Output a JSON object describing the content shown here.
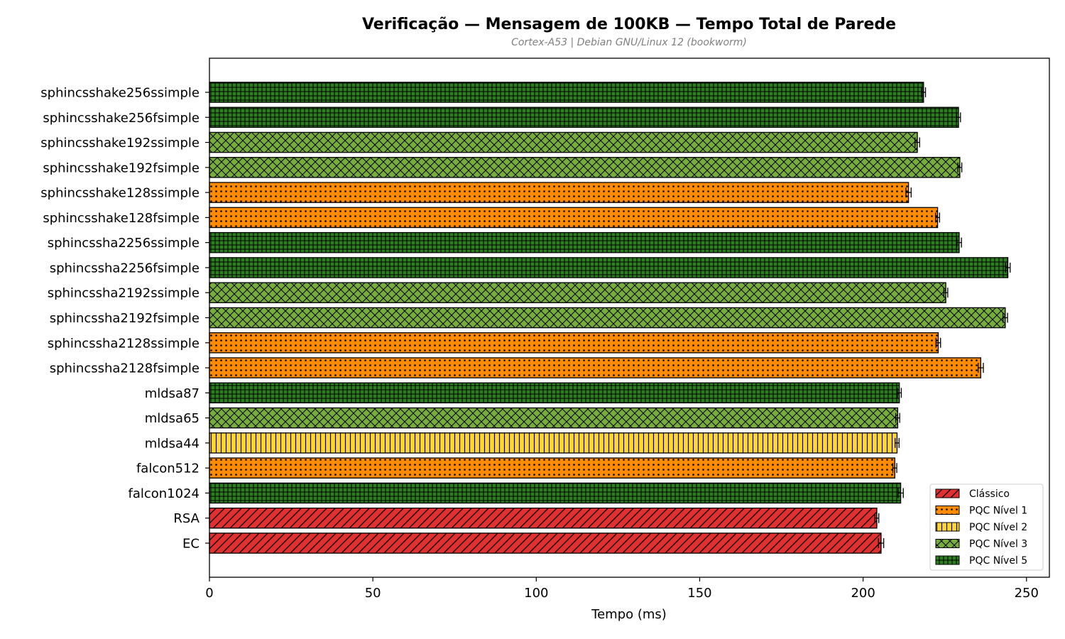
{
  "chart_data": {
    "type": "bar",
    "orientation": "horizontal",
    "title": "Verificação — Mensagem de 100KB — Tempo Total de Parede",
    "subtitle": "Cortex-A53 | Debian GNU/Linux 12 (bookworm)",
    "xlabel": "Tempo (ms)",
    "ylabel": "",
    "xlim": [
      0,
      257
    ],
    "xticks": [
      0,
      50,
      100,
      150,
      200,
      250
    ],
    "grid": false,
    "legend_position": "bottom-right",
    "categories": [
      {
        "name": "Clássico",
        "color": "#e03030",
        "pattern": "diagonal-hatch"
      },
      {
        "name": "PQC Nível 1",
        "color": "#ff8c00",
        "pattern": "dots"
      },
      {
        "name": "PQC Nível 2",
        "color": "#ffd633",
        "pattern": "vertical-lines"
      },
      {
        "name": "PQC Nível 3",
        "color": "#77ad3a",
        "pattern": "crosshatch"
      },
      {
        "name": "PQC Nível 5",
        "color": "#2e7d22",
        "pattern": "grid"
      }
    ],
    "bars": [
      {
        "label": "sphincsshake256ssimple",
        "value": 218.5,
        "error": 0.6,
        "category": 4
      },
      {
        "label": "sphincsshake256fsimple",
        "value": 229.2,
        "error": 0.6,
        "category": 4
      },
      {
        "label": "sphincsshake192ssimple",
        "value": 216.6,
        "error": 0.7,
        "category": 3
      },
      {
        "label": "sphincsshake192fsimple",
        "value": 229.6,
        "error": 0.6,
        "category": 3
      },
      {
        "label": "sphincsshake128ssimple",
        "value": 213.9,
        "error": 0.8,
        "category": 1
      },
      {
        "label": "sphincsshake128fsimple",
        "value": 222.8,
        "error": 0.6,
        "category": 1
      },
      {
        "label": "sphincssha2256ssimple",
        "value": 229.4,
        "error": 0.7,
        "category": 4
      },
      {
        "label": "sphincssha2256fsimple",
        "value": 244.3,
        "error": 0.7,
        "category": 4
      },
      {
        "label": "sphincssha2192ssimple",
        "value": 225.3,
        "error": 0.6,
        "category": 3
      },
      {
        "label": "sphincssha2192fsimple",
        "value": 243.5,
        "error": 0.7,
        "category": 3
      },
      {
        "label": "sphincssha2128ssimple",
        "value": 223.0,
        "error": 0.7,
        "category": 1
      },
      {
        "label": "sphincssha2128fsimple",
        "value": 236.0,
        "error": 0.8,
        "category": 1
      },
      {
        "label": "mldsa87",
        "value": 211.1,
        "error": 0.6,
        "category": 4
      },
      {
        "label": "mldsa65",
        "value": 210.6,
        "error": 0.6,
        "category": 3
      },
      {
        "label": "mldsa44",
        "value": 210.4,
        "error": 0.6,
        "category": 2
      },
      {
        "label": "falcon512",
        "value": 209.7,
        "error": 0.6,
        "category": 1
      },
      {
        "label": "falcon1024",
        "value": 211.5,
        "error": 0.8,
        "category": 4
      },
      {
        "label": "RSA",
        "value": 204.2,
        "error": 0.6,
        "category": 0
      },
      {
        "label": "EC",
        "value": 205.5,
        "error": 0.8,
        "category": 0
      }
    ]
  }
}
